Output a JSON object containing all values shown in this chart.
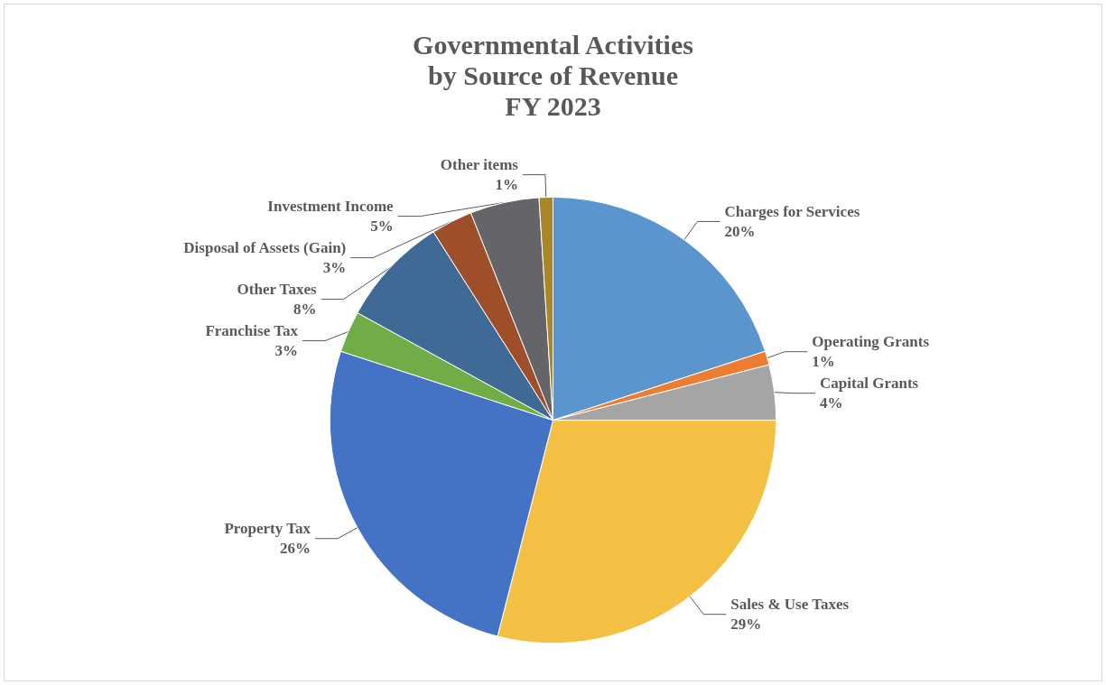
{
  "chart_data": {
    "type": "pie",
    "title": "Governmental Activities\nby Source of Revenue\nFY 2023",
    "categories": [
      "Charges for Services",
      "Operating Grants",
      "Capital Grants",
      "Sales & Use Taxes",
      "Property Tax",
      "Franchise Tax",
      "Other Taxes",
      "Disposal of Assets (Gain)",
      "Investment Income",
      "Other items"
    ],
    "values": [
      20,
      1,
      4,
      29,
      26,
      3,
      8,
      3,
      5,
      1
    ],
    "colors": [
      "#5b95cd",
      "#ed7d31",
      "#a5a5a5",
      "#f4c043",
      "#4472c4",
      "#70ad47",
      "#3f6a95",
      "#9e4f29",
      "#646469",
      "#a8862a"
    ],
    "value_labels": [
      "20%",
      "1%",
      "4%",
      "29%",
      "26%",
      "3%",
      "8%",
      "3%",
      "5%",
      "1%"
    ],
    "legend": false
  }
}
